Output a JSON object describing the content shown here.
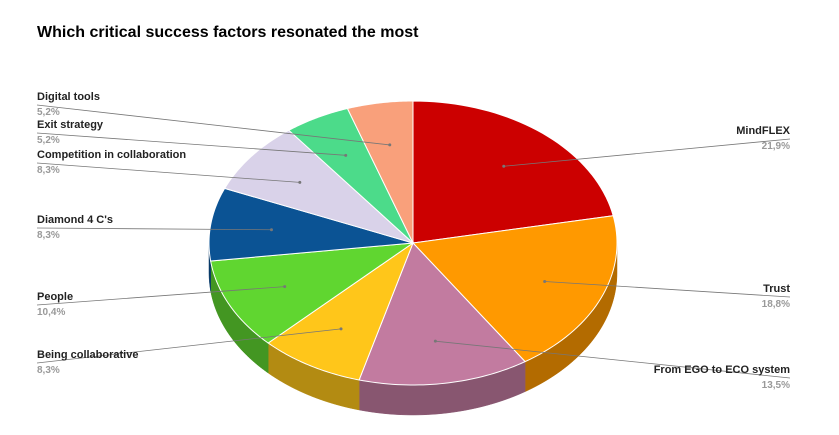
{
  "chart_data": {
    "type": "pie3d",
    "title": "Which critical success factors resonated the most",
    "categories": [
      "MindFLEX",
      "Trust",
      "From EGO to ECO system",
      "Being collaborative",
      "People",
      "Diamond 4 C's",
      "Competition in collaboration",
      "Exit strategy",
      "Digital tools"
    ],
    "values": [
      21.9,
      18.8,
      13.5,
      8.3,
      10.4,
      8.3,
      8.3,
      5.2,
      5.2
    ],
    "value_labels": [
      "21,9%",
      "18,8%",
      "13,5%",
      "8,3%",
      "10,4%",
      "8,3%",
      "8,3%",
      "5,2%",
      "5,2%"
    ],
    "colors": [
      "#cc0000",
      "#ff9900",
      "#c27ba0",
      "#ffc61a",
      "#60d630",
      "#0b5394",
      "#d9d2e9",
      "#4cdb8a",
      "#f9a07b"
    ]
  }
}
